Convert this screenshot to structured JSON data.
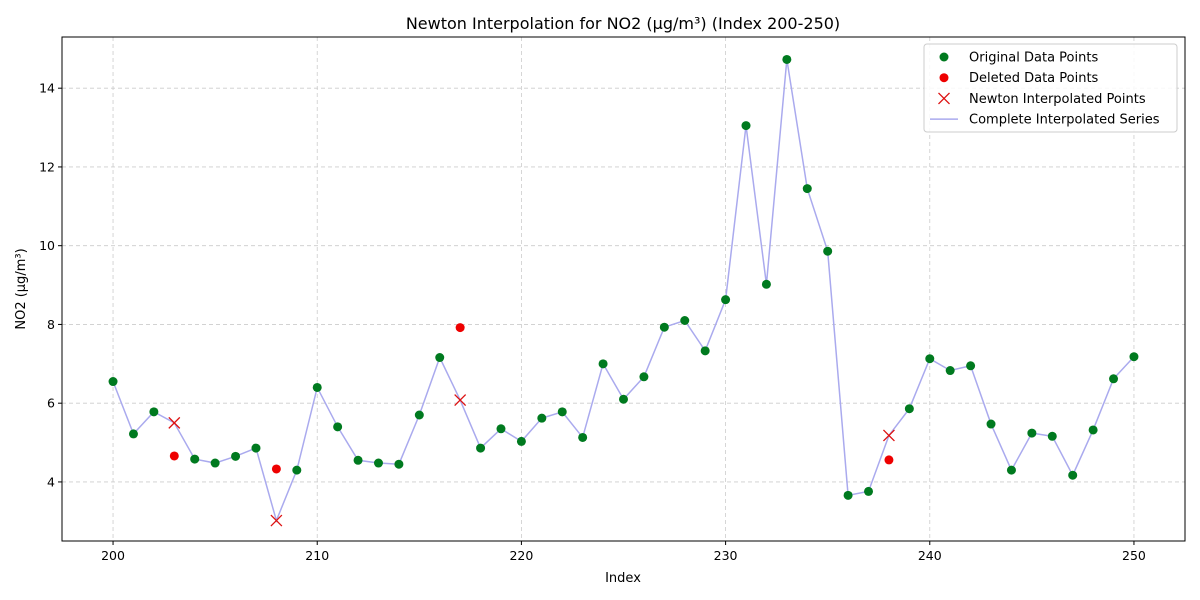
{
  "chart_data": {
    "type": "line",
    "title": "Newton Interpolation for NO2 (µg/m³) (Index 200-250)",
    "xlabel": "Index",
    "ylabel": "NO2 (µg/m³)",
    "xlim": [
      197.5,
      252.5
    ],
    "ylim": [
      2.5,
      15.3
    ],
    "xticks": [
      200,
      210,
      220,
      230,
      240,
      250
    ],
    "yticks": [
      4,
      6,
      8,
      10,
      12,
      14
    ],
    "grid": true,
    "legend_position": "top-right",
    "colors": {
      "original": "#007a1f",
      "deleted": "#ee0000",
      "interpolated": "#dd1111",
      "series_line": "#aaaaee"
    },
    "series": [
      {
        "name": "Original Data Points",
        "marker": "circle",
        "x": [
          200,
          201,
          202,
          204,
          205,
          206,
          207,
          209,
          210,
          211,
          212,
          213,
          214,
          215,
          216,
          218,
          219,
          220,
          221,
          222,
          223,
          224,
          225,
          226,
          227,
          228,
          229,
          230,
          231,
          232,
          233,
          234,
          235,
          236,
          237,
          239,
          240,
          241,
          242,
          243,
          244,
          245,
          246,
          247,
          248,
          249,
          250
        ],
        "y": [
          6.55,
          5.22,
          5.78,
          4.58,
          4.48,
          4.65,
          4.86,
          4.3,
          6.4,
          5.4,
          4.55,
          4.48,
          4.45,
          5.7,
          7.16,
          4.86,
          5.35,
          5.03,
          5.62,
          5.78,
          5.13,
          7.0,
          6.1,
          6.67,
          7.93,
          8.1,
          7.33,
          8.63,
          13.05,
          9.02,
          14.73,
          11.45,
          9.86,
          3.66,
          3.76,
          5.86,
          7.13,
          6.83,
          6.95,
          5.47,
          4.3,
          5.24,
          5.16,
          4.17,
          5.32,
          6.62,
          7.18
        ]
      },
      {
        "name": "Deleted Data Points",
        "marker": "circle",
        "x": [
          203,
          208,
          217,
          238
        ],
        "y": [
          4.66,
          4.33,
          7.92,
          4.56
        ]
      },
      {
        "name": "Newton Interpolated Points",
        "marker": "x",
        "x": [
          203,
          208,
          217,
          238
        ],
        "y": [
          5.5,
          3.02,
          6.08,
          5.18
        ]
      },
      {
        "name": "Complete Interpolated Series",
        "marker": "line",
        "x": [
          200,
          201,
          202,
          203,
          204,
          205,
          206,
          207,
          208,
          209,
          210,
          211,
          212,
          213,
          214,
          215,
          216,
          217,
          218,
          219,
          220,
          221,
          222,
          223,
          224,
          225,
          226,
          227,
          228,
          229,
          230,
          231,
          232,
          233,
          234,
          235,
          236,
          237,
          238,
          239,
          240,
          241,
          242,
          243,
          244,
          245,
          246,
          247,
          248,
          249,
          250
        ],
        "y": [
          6.55,
          5.22,
          5.78,
          5.5,
          4.58,
          4.48,
          4.65,
          4.86,
          3.02,
          4.3,
          6.4,
          5.4,
          4.55,
          4.48,
          4.45,
          5.7,
          7.16,
          6.08,
          4.86,
          5.35,
          5.03,
          5.62,
          5.78,
          5.13,
          7.0,
          6.1,
          6.67,
          7.93,
          8.1,
          7.33,
          8.63,
          13.05,
          9.02,
          14.73,
          11.45,
          9.86,
          3.66,
          3.76,
          5.18,
          5.86,
          7.13,
          6.83,
          6.95,
          5.47,
          4.3,
          5.24,
          5.16,
          4.17,
          5.32,
          6.62,
          7.18
        ]
      }
    ]
  }
}
